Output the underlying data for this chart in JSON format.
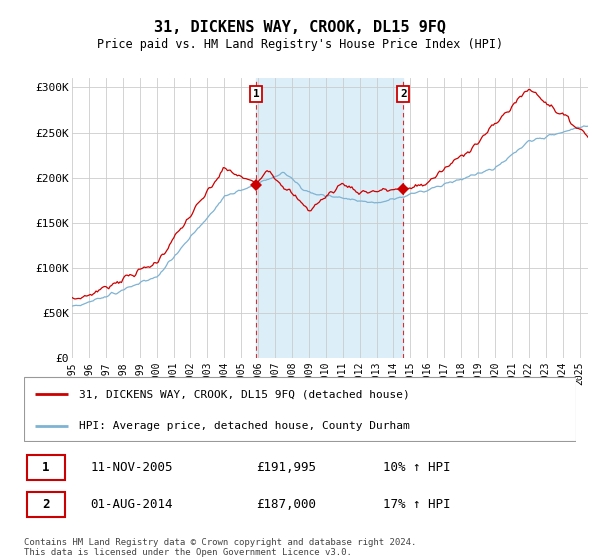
{
  "title": "31, DICKENS WAY, CROOK, DL15 9FQ",
  "subtitle": "Price paid vs. HM Land Registry's House Price Index (HPI)",
  "ylabel_ticks": [
    "£0",
    "£50K",
    "£100K",
    "£150K",
    "£200K",
    "£250K",
    "£300K"
  ],
  "ytick_values": [
    0,
    50000,
    100000,
    150000,
    200000,
    250000,
    300000
  ],
  "ylim": [
    0,
    310000
  ],
  "xlim_start": 1995.0,
  "xlim_end": 2025.5,
  "sale1": {
    "date_num": 2005.87,
    "price": 191995,
    "label": "1",
    "date_str": "11-NOV-2005",
    "price_str": "£191,995",
    "hpi_str": "10% ↑ HPI"
  },
  "sale2": {
    "date_num": 2014.58,
    "price": 187000,
    "label": "2",
    "date_str": "01-AUG-2014",
    "price_str": "£187,000",
    "hpi_str": "17% ↑ HPI"
  },
  "red_color": "#cc0000",
  "blue_color": "#7fb3d3",
  "shaded_color": "#dceef8",
  "grid_color": "#cccccc",
  "background_color": "#ffffff",
  "legend_label_red": "31, DICKENS WAY, CROOK, DL15 9FQ (detached house)",
  "legend_label_blue": "HPI: Average price, detached house, County Durham",
  "footnote": "Contains HM Land Registry data © Crown copyright and database right 2024.\nThis data is licensed under the Open Government Licence v3.0."
}
